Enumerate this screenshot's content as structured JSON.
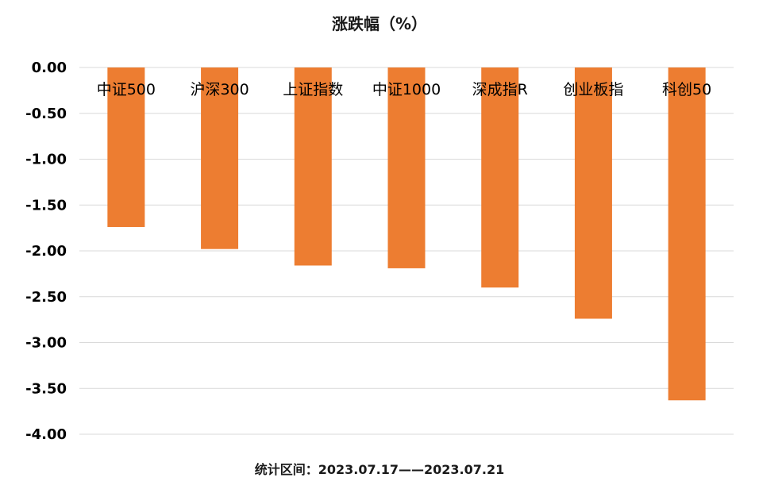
{
  "chart_data": {
    "type": "bar",
    "title": "涨跌幅（%）",
    "footer": "统计区间：2023.07.17——2023.07.21",
    "categories": [
      "中证500",
      "沪深300",
      "上证指数",
      "中证1000",
      "深成指R",
      "创业板指",
      "科创50"
    ],
    "values": [
      -1.74,
      -1.98,
      -2.16,
      -2.19,
      -2.4,
      -2.74,
      -3.63
    ],
    "ylim": [
      -4.0,
      0.0
    ],
    "yticks": [
      "0.00",
      "-0.50",
      "-1.00",
      "-1.50",
      "-2.00",
      "-2.50",
      "-3.00",
      "-3.50",
      "-4.00"
    ],
    "ytick_values": [
      0,
      -0.5,
      -1.0,
      -1.5,
      -2.0,
      -2.5,
      -3.0,
      -3.5,
      -4.0
    ],
    "grid": true,
    "bar_color": "#ED7D31",
    "xlabel": "",
    "ylabel": ""
  }
}
